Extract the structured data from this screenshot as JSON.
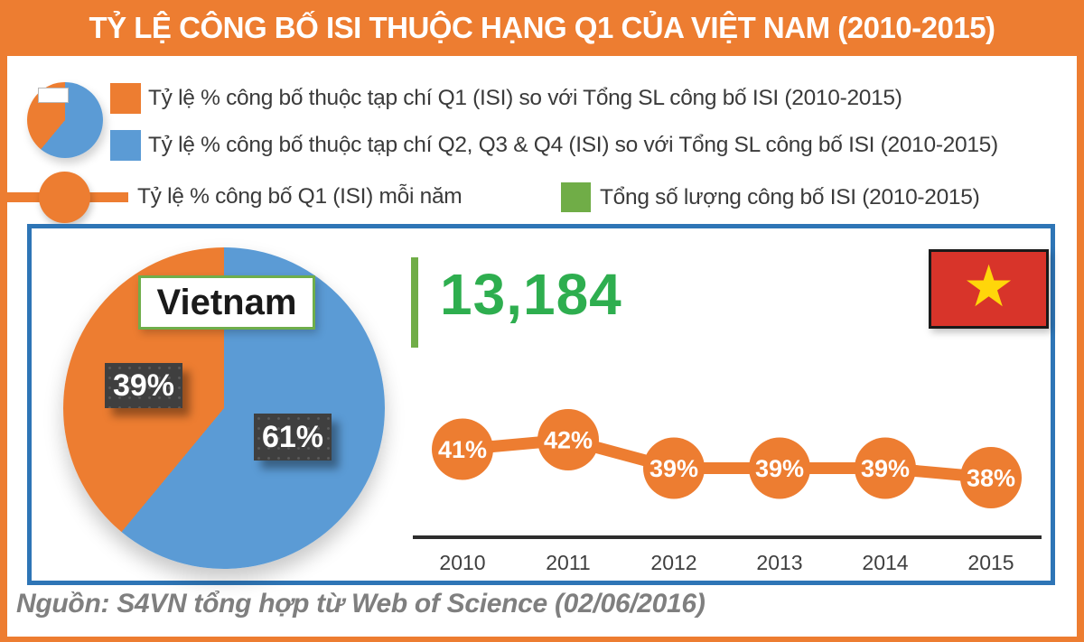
{
  "header": {
    "title": "TỶ LỆ CÔNG BỐ ISI THUỘC HẠNG Q1 CỦA VIỆT NAM (2010-2015)"
  },
  "legend": {
    "items": [
      {
        "swatch": "orange-square",
        "label": "Tỷ lệ % công bố thuộc tạp chí Q1 (ISI) so với Tổng SL công bố ISI (2010-2015)"
      },
      {
        "swatch": "blue-square",
        "label": "Tỷ lệ % công bố thuộc tạp chí Q2, Q3 & Q4 (ISI) so với Tổng SL công bố ISI (2010-2015)"
      },
      {
        "swatch": "line-marker",
        "label": "Tỷ lệ % công bố Q1 (ISI) mỗi năm"
      },
      {
        "swatch": "green-square",
        "label": "Tổng số lượng công bố ISI (2010-2015)"
      }
    ]
  },
  "main": {
    "total_publications": "13,184",
    "flag_star": "★"
  },
  "chart_data": [
    {
      "type": "pie",
      "title": "Vietnam",
      "labels": [
        "Q1 (ISI) publications",
        "Q2, Q3 & Q4 (ISI) publications"
      ],
      "values": [
        39,
        61
      ],
      "display_labels": [
        "39%",
        "61%"
      ],
      "colors": [
        "#ED7D31",
        "#5B9BD5"
      ],
      "layout": {
        "start_angle_deg": 0,
        "direction": "clockwise",
        "first_slice": "blue"
      }
    },
    {
      "type": "line",
      "title": "Tỷ lệ % công bố Q1 (ISI) mỗi năm",
      "categories": [
        "2010",
        "2011",
        "2012",
        "2013",
        "2014",
        "2015"
      ],
      "values": [
        41,
        42,
        39,
        39,
        39,
        38
      ],
      "display_labels": [
        "41%",
        "42%",
        "39%",
        "39%",
        "39%",
        "38%"
      ],
      "unit": "%",
      "ylim": [
        35,
        45
      ],
      "grid": false,
      "legend_position": "none",
      "marker_color": "#ED7D31",
      "axis_color": "#2d2d2d"
    }
  ],
  "footer": {
    "source": "Nguồn: S4VN tổng hợp từ Web of Science (02/06/2016)"
  },
  "colors": {
    "orange": "#ED7D31",
    "blue": "#5B9BD5",
    "green": "#70AD47",
    "bright_green": "#2EAE4F",
    "dark_label": "#3F3F3F",
    "box_border_blue": "#2E75B6",
    "flag_red": "#D8342A",
    "star_yellow": "#FFD60A"
  }
}
